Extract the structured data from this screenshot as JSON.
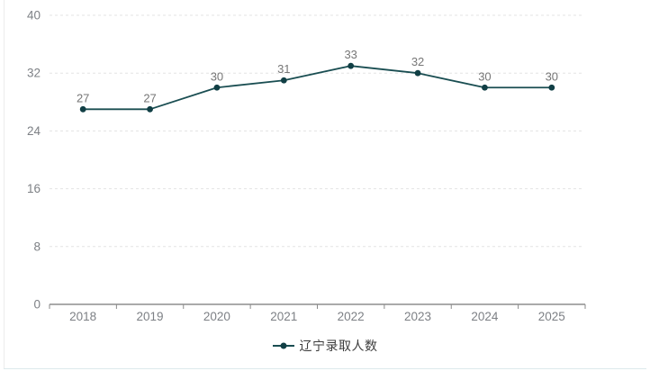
{
  "chart_data": {
    "type": "line",
    "categories": [
      "2018",
      "2019",
      "2020",
      "2021",
      "2022",
      "2023",
      "2024",
      "2025"
    ],
    "series": [
      {
        "name": "辽宁录取人数",
        "values": [
          27,
          27,
          30,
          31,
          33,
          32,
          30,
          30
        ]
      }
    ],
    "title": "",
    "xlabel": "",
    "ylabel": "",
    "ylim": [
      0,
      40
    ],
    "y_ticks": [
      0,
      8,
      16,
      24,
      32,
      40
    ],
    "grid": "horizontal-dashed",
    "legend_position": "bottom-center",
    "value_labels": "above-points"
  },
  "legend": {
    "label": "辽宁录取人数"
  },
  "colors": {
    "line": "#1a4e52",
    "marker": "#113f45",
    "value_label": "#767676",
    "axis_label": "#7d8085",
    "axis_line": "#555555",
    "tick": "#8a8a8a",
    "grid_line": "#e3e3e3",
    "legend_text": "#3d3d3d",
    "panel_border_left": "#ececec",
    "panel_border_bottom": "#dde9ec",
    "background": "#ffffff"
  }
}
